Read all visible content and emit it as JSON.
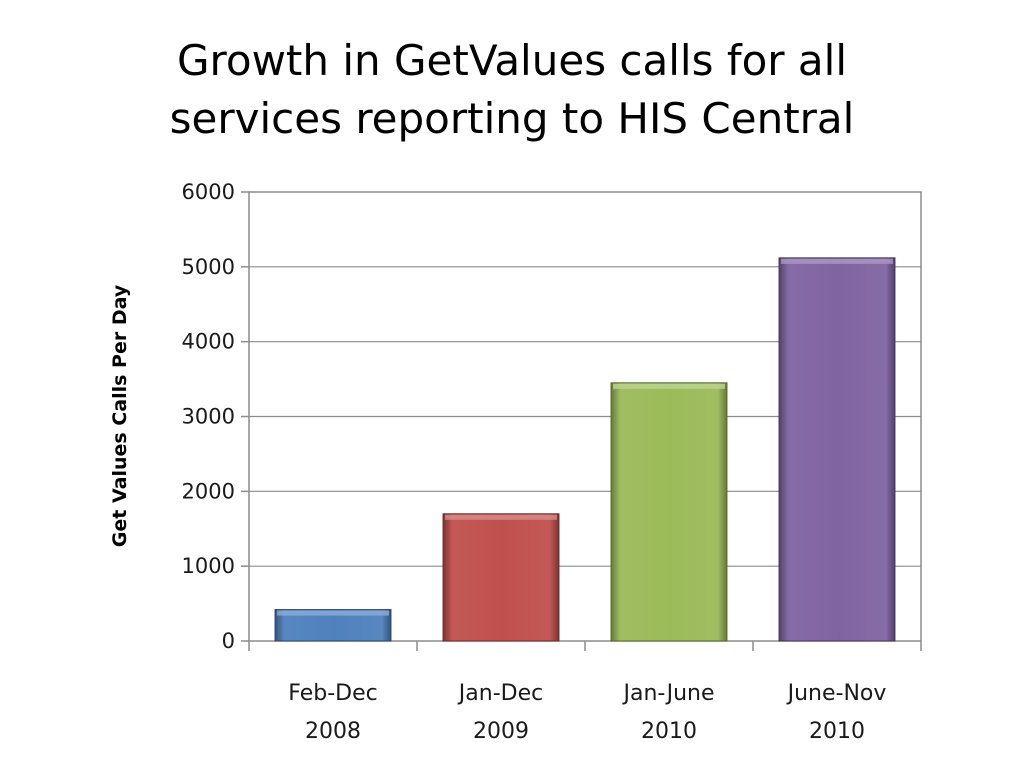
{
  "slide": {
    "title_line1": "Growth in GetValues calls for all",
    "title_line2": "services reporting to HIS Central"
  },
  "chart_data": {
    "type": "bar",
    "title": "Growth in GetValues calls for all services reporting to HIS Central",
    "xlabel": "",
    "ylabel": "Get Values Calls Per Day",
    "ylim": [
      0,
      6000
    ],
    "yticks": [
      0,
      1000,
      2000,
      3000,
      4000,
      5000,
      6000
    ],
    "grid": true,
    "legend": "none",
    "categories": [
      [
        "Feb-Dec",
        "2008"
      ],
      [
        "Jan-Dec",
        "2009"
      ],
      [
        "Jan-June",
        "2010"
      ],
      [
        "June-Nov",
        "2010"
      ]
    ],
    "values": [
      420,
      1700,
      3450,
      5120
    ],
    "colors": [
      "#4F81BD",
      "#C0504D",
      "#9BBB59",
      "#8064A2"
    ]
  }
}
